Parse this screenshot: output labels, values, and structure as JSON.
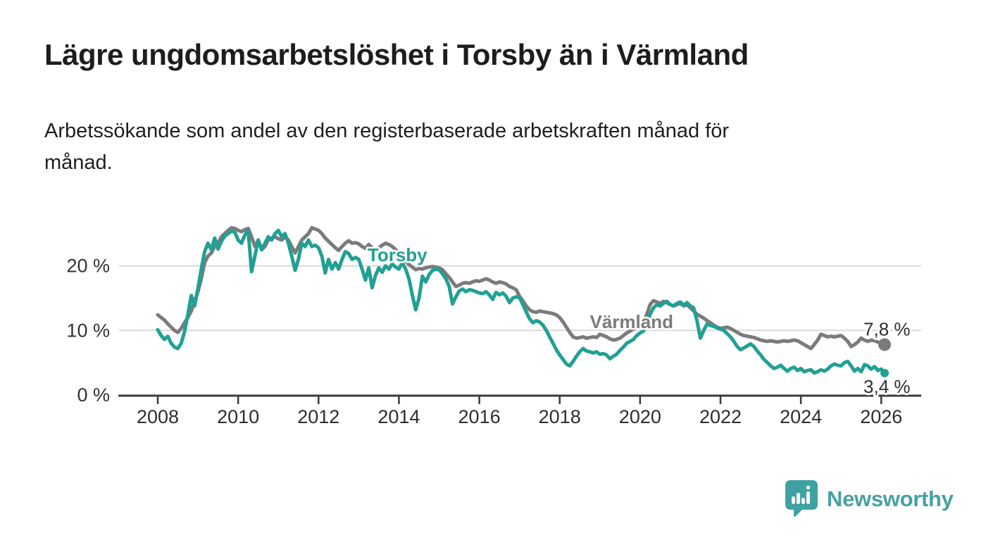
{
  "header": {
    "title": "Lägre ungdomsarbetslöshet i Torsby än i Värmland",
    "subtitle_lines": [
      "Arbetssökande som andel av den registerbaserade arbetskraften månad för",
      "månad."
    ]
  },
  "chart_data": {
    "type": "line",
    "unit": "%",
    "frequency": "monthly",
    "x_start": 2008.0,
    "x_end": 2026.083,
    "xlim": [
      2007.0,
      2027.0
    ],
    "ylim": [
      0,
      27
    ],
    "grid": true,
    "legend": "inline-labels",
    "x_ticks": [
      2008,
      2010,
      2012,
      2014,
      2016,
      2018,
      2020,
      2022,
      2024,
      2026
    ],
    "y_ticks": [
      {
        "value": 0,
        "label": "0 %"
      },
      {
        "value": 10,
        "label": "10 %"
      },
      {
        "value": 20,
        "label": "20 %"
      }
    ],
    "series": [
      {
        "name": "Värmland",
        "color": "#7b7b7b",
        "end_label": "7,8 %",
        "end_value": 7.8,
        "values": [
          12.4,
          12.0,
          11.6,
          11.0,
          10.5,
          10.0,
          9.7,
          10.3,
          11.2,
          12.0,
          13.0,
          14.5,
          16.0,
          18.0,
          20.5,
          21.5,
          22.0,
          23.0,
          23.5,
          24.5,
          25.0,
          25.5,
          25.9,
          25.8,
          25.5,
          25.3,
          25.6,
          25.8,
          24.5,
          23.0,
          24.0,
          22.5,
          23.0,
          24.0,
          24.3,
          24.5,
          24.2,
          24.0,
          24.5,
          24.0,
          23.0,
          22.0,
          23.0,
          24.0,
          24.5,
          25.0,
          25.9,
          25.7,
          25.5,
          25.0,
          24.3,
          23.8,
          23.3,
          22.8,
          22.4,
          23.0,
          23.5,
          23.9,
          23.5,
          23.6,
          23.4,
          23.0,
          22.7,
          23.3,
          22.8,
          22.5,
          22.8,
          23.2,
          23.5,
          23.3,
          23.0,
          22.5,
          22.0,
          21.5,
          20.8,
          20.2,
          19.8,
          19.4,
          19.6,
          19.5,
          19.7,
          19.8,
          19.9,
          19.8,
          19.7,
          19.4,
          18.8,
          18.2,
          17.5,
          16.8,
          17.0,
          17.3,
          17.4,
          17.3,
          17.5,
          17.7,
          17.6,
          17.8,
          18.0,
          17.8,
          17.5,
          17.3,
          17.5,
          17.4,
          17.2,
          16.8,
          16.6,
          16.3,
          15.3,
          14.6,
          13.8,
          13.2,
          12.9,
          12.8,
          13.0,
          12.9,
          12.8,
          12.7,
          12.6,
          12.4,
          12.0,
          11.3,
          10.5,
          9.7,
          9.0,
          8.8,
          8.9,
          9.0,
          8.8,
          8.9,
          9.0,
          8.9,
          9.4,
          9.2,
          9.0,
          8.7,
          8.5,
          8.6,
          8.8,
          9.2,
          9.6,
          9.9,
          10.2,
          10.5,
          10.8,
          11.2,
          12.5,
          14.0,
          14.6,
          14.4,
          14.2,
          14.5,
          14.3,
          14.0,
          13.8,
          14.0,
          14.2,
          13.8,
          14.0,
          13.5,
          13.0,
          12.5,
          12.2,
          11.9,
          11.5,
          11.2,
          10.8,
          10.5,
          10.3,
          10.4,
          10.5,
          10.3,
          10.0,
          9.7,
          9.4,
          9.2,
          9.1,
          9.0,
          8.9,
          8.7,
          8.5,
          8.4,
          8.3,
          8.4,
          8.3,
          8.2,
          8.3,
          8.4,
          8.3,
          8.4,
          8.5,
          8.4,
          8.1,
          7.8,
          7.5,
          7.2,
          7.8,
          8.5,
          9.4,
          9.2,
          9.0,
          9.1,
          9.0,
          9.1,
          9.2,
          8.8,
          8.3,
          7.5,
          7.8,
          8.2,
          8.8,
          8.5,
          8.3,
          8.5,
          8.4,
          8.2,
          8.0,
          7.8
        ]
      },
      {
        "name": "Torsby",
        "color": "#21a094",
        "end_label": "3,4 %",
        "end_value": 3.4,
        "values": [
          10.1,
          9.2,
          8.6,
          9.1,
          8.0,
          7.4,
          7.2,
          8.0,
          9.8,
          12.5,
          15.4,
          13.8,
          16.5,
          19.5,
          22.2,
          23.5,
          22.5,
          24.3,
          22.6,
          23.8,
          24.6,
          25.0,
          25.4,
          25.2,
          24.0,
          23.5,
          24.8,
          25.5,
          19.1,
          21.5,
          24.0,
          22.5,
          23.5,
          24.5,
          24.0,
          25.0,
          25.5,
          24.5,
          25.0,
          23.5,
          21.5,
          19.3,
          21.0,
          23.5,
          23.0,
          24.0,
          23.0,
          23.2,
          22.8,
          21.5,
          18.9,
          21.0,
          19.5,
          20.5,
          19.5,
          21.0,
          22.2,
          21.9,
          21.0,
          21.3,
          21.0,
          19.5,
          17.8,
          19.7,
          16.6,
          18.5,
          19.7,
          19.0,
          20.0,
          19.5,
          20.3,
          19.8,
          19.5,
          20.5,
          19.5,
          18.0,
          15.5,
          13.2,
          15.0,
          18.4,
          17.5,
          18.6,
          19.3,
          19.5,
          19.4,
          18.8,
          18.0,
          16.8,
          14.1,
          15.2,
          16.1,
          16.4,
          16.0,
          16.3,
          16.2,
          16.0,
          15.8,
          15.7,
          16.0,
          15.5,
          14.8,
          15.9,
          15.5,
          15.8,
          15.3,
          14.3,
          15.0,
          15.2,
          15.1,
          14.0,
          12.9,
          11.8,
          11.2,
          11.5,
          11.3,
          10.8,
          10.0,
          9.0,
          8.0,
          7.0,
          6.2,
          5.5,
          4.8,
          4.5,
          5.2,
          6.0,
          6.7,
          7.2,
          6.8,
          6.7,
          6.5,
          6.7,
          6.3,
          6.4,
          6.2,
          5.6,
          6.0,
          6.3,
          6.9,
          7.4,
          8.0,
          8.3,
          8.6,
          9.2,
          9.6,
          9.9,
          11.0,
          12.5,
          13.5,
          14.0,
          13.8,
          14.2,
          14.5,
          14.0,
          13.8,
          14.2,
          14.4,
          13.9,
          14.3,
          13.8,
          13.5,
          11.5,
          8.8,
          10.0,
          11.0,
          10.8,
          10.6,
          10.4,
          10.2,
          10.0,
          9.5,
          9.0,
          8.3,
          7.5,
          7.0,
          7.3,
          7.6,
          7.9,
          7.5,
          6.8,
          6.2,
          5.5,
          5.0,
          4.5,
          4.1,
          4.3,
          4.6,
          4.1,
          3.7,
          4.1,
          4.3,
          3.8,
          4.1,
          3.6,
          3.8,
          3.9,
          3.4,
          3.6,
          3.9,
          3.7,
          4.0,
          4.5,
          4.8,
          4.6,
          4.5,
          5.0,
          5.2,
          4.5,
          3.7,
          4.1,
          3.6,
          4.7,
          4.5,
          4.0,
          4.4,
          3.8,
          4.0,
          3.4
        ]
      }
    ],
    "annotations": [
      {
        "text": "Torsby",
        "color": "#21a094"
      },
      {
        "text": "Värmland",
        "color": "#7b7b7b"
      }
    ]
  },
  "branding": {
    "logo_text": "Newsworthy",
    "logo_icon": "bar-chart-speech-bubble-icon",
    "brand_color": "#47a1a2"
  },
  "colors": {
    "torsby": "#21a094",
    "varmland": "#7b7b7b",
    "grid": "#d9d9d9",
    "axis": "#3a3a3a",
    "title_text": "#1d1d1d"
  }
}
